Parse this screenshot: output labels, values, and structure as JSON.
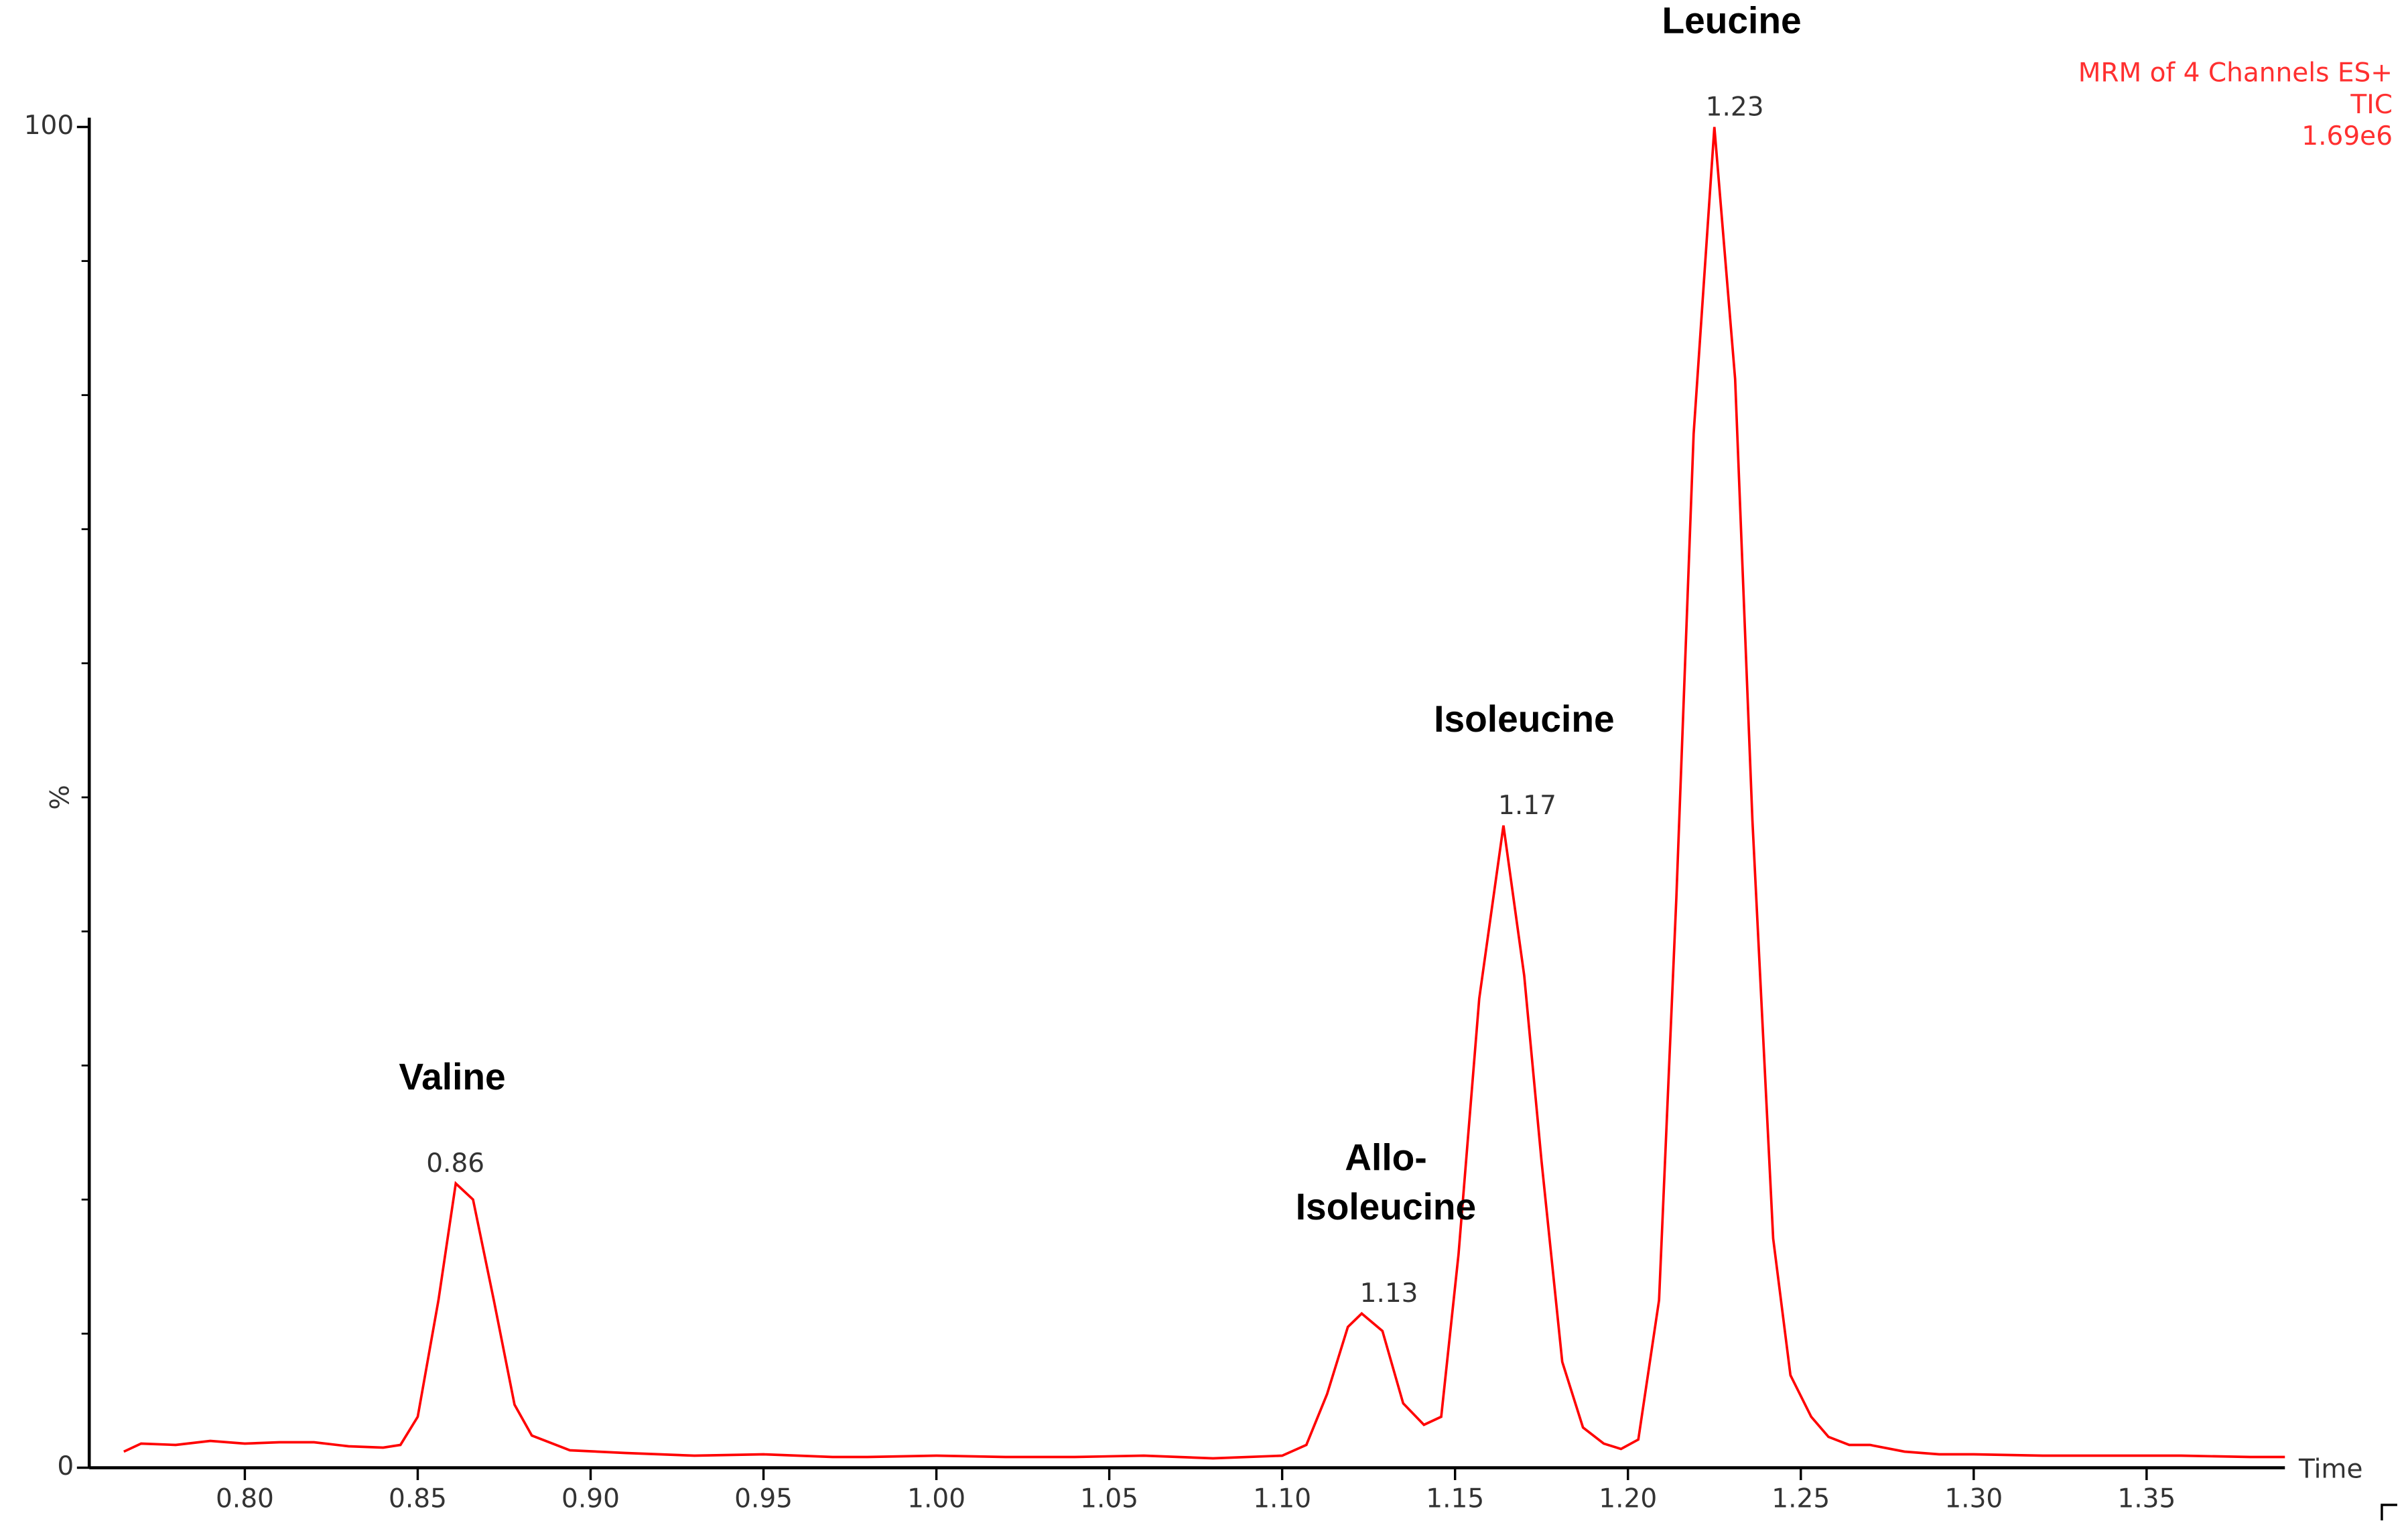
{
  "chart_data": {
    "type": "line",
    "x_label": "Time",
    "y_label": "%",
    "info": [
      "MRM of 4 Channels ES+",
      "TIC",
      "1.69e6"
    ],
    "info_color": "#ff3030",
    "x": [
      0.765,
      0.77,
      0.78,
      0.79,
      0.8,
      0.81,
      0.82,
      0.83,
      0.84,
      0.845,
      0.85,
      0.856,
      0.861,
      0.866,
      0.872,
      0.878,
      0.883,
      0.894,
      0.91,
      0.93,
      0.95,
      0.97,
      0.98,
      1.0,
      1.02,
      1.04,
      1.06,
      1.08,
      1.1,
      1.107,
      1.113,
      1.119,
      1.123,
      1.129,
      1.135,
      1.141,
      1.146,
      1.151,
      1.157,
      1.164,
      1.17,
      1.175,
      1.181,
      1.187,
      1.193,
      1.198,
      1.203,
      1.209,
      1.214,
      1.219,
      1.225,
      1.231,
      1.236,
      1.242,
      1.247,
      1.253,
      1.258,
      1.264,
      1.27,
      1.28,
      1.29,
      1.3,
      1.32,
      1.34,
      1.36,
      1.38,
      1.39
    ],
    "series": [
      {
        "color": "#ff0000",
        "values": [
          1.2,
          1.8,
          1.7,
          2.0,
          1.8,
          1.9,
          1.9,
          1.6,
          1.5,
          1.7,
          3.8,
          12.5,
          21.2,
          20.0,
          12.5,
          4.7,
          2.4,
          1.3,
          1.1,
          0.9,
          1.0,
          0.8,
          0.8,
          0.9,
          0.8,
          0.8,
          0.9,
          0.7,
          0.9,
          1.7,
          5.5,
          10.5,
          11.5,
          10.2,
          4.8,
          3.2,
          3.8,
          15.9,
          35.0,
          47.9,
          36.7,
          22.9,
          7.9,
          3.0,
          1.8,
          1.4,
          2.1,
          12.5,
          42.5,
          77.1,
          100,
          81.2,
          48.3,
          17.1,
          6.9,
          3.8,
          2.3,
          1.7,
          1.7,
          1.2,
          1.0,
          1.0,
          0.9,
          0.9,
          0.9,
          0.8,
          0.8
        ]
      }
    ],
    "peak_labels": [
      0.86,
      1.13,
      1.17,
      1.23
    ],
    "annotations": [
      [
        "Valine"
      ],
      [
        "Allo-",
        "Isoleucine"
      ],
      [
        "Isoleucine"
      ],
      [
        "Leucine"
      ]
    ],
    "xlim": [
      0.755,
      1.39
    ],
    "ylim": [
      0,
      100
    ],
    "xticks": [
      {
        "value": 0.8,
        "label": "0.80"
      },
      {
        "value": 0.85,
        "label": "0.85"
      },
      {
        "value": 0.9,
        "label": "0.90"
      },
      {
        "value": 0.95,
        "label": "0.95"
      },
      {
        "value": 1.0,
        "label": "1.00"
      },
      {
        "value": 1.05,
        "label": "1.05"
      },
      {
        "value": 1.1,
        "label": "1.10"
      },
      {
        "value": 1.15,
        "label": "1.15"
      },
      {
        "value": 1.2,
        "label": "1.20"
      },
      {
        "value": 1.25,
        "label": "1.25"
      },
      {
        "value": 1.3,
        "label": "1.30"
      },
      {
        "value": 1.35,
        "label": "1.35"
      }
    ],
    "yticks": [
      0,
      100
    ],
    "yminorticks": [
      10,
      20,
      30,
      40,
      50,
      60,
      70,
      80,
      90
    ]
  }
}
